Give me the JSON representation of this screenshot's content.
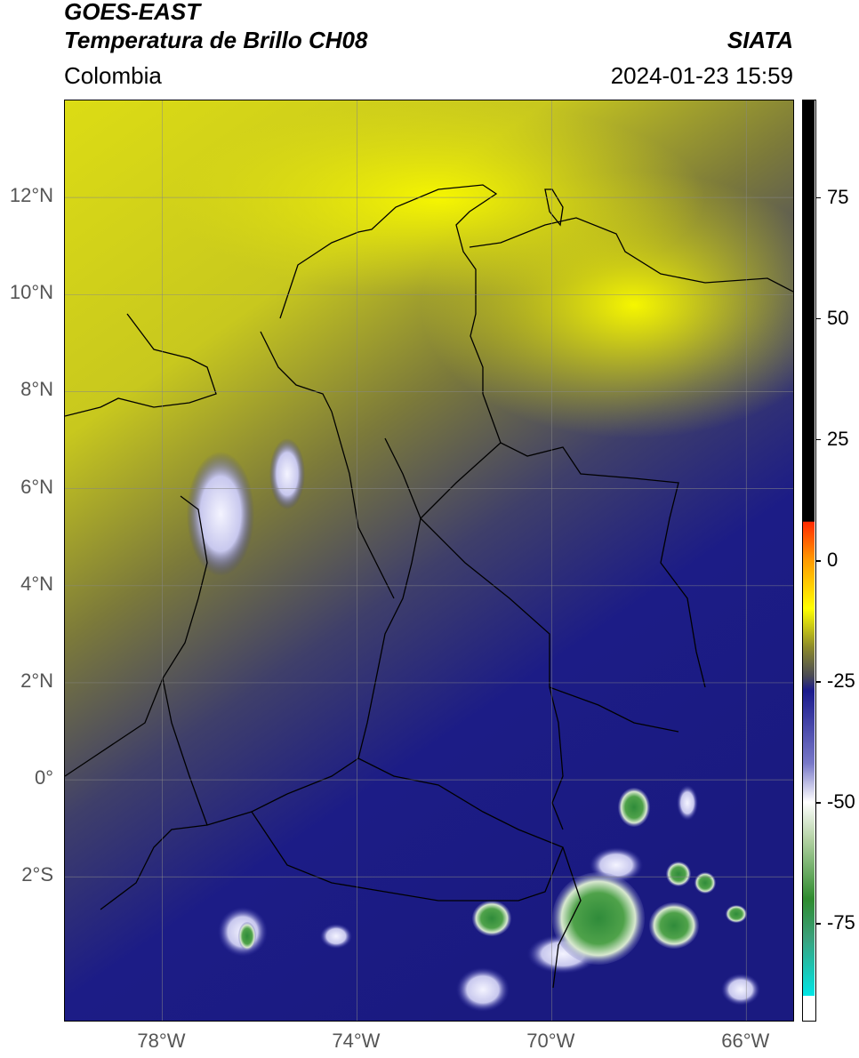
{
  "header": {
    "title_line1": "GOES-EAST",
    "title_line2": "Temperatura de Brillo CH08",
    "region": "Colombia",
    "organization": "SIATA",
    "timestamp": "2024-01-23 15:59"
  },
  "map": {
    "lon_range": [
      -80,
      -65
    ],
    "lat_range": [
      -5,
      14
    ],
    "lat_ticks": [
      {
        "value": 12,
        "label": "12°N"
      },
      {
        "value": 10,
        "label": "10°N"
      },
      {
        "value": 8,
        "label": "8°N"
      },
      {
        "value": 6,
        "label": "6°N"
      },
      {
        "value": 4,
        "label": "4°N"
      },
      {
        "value": 2,
        "label": "2°N"
      },
      {
        "value": 0,
        "label": "0°"
      },
      {
        "value": -2,
        "label": "2°S"
      }
    ],
    "lon_ticks": [
      {
        "value": -78,
        "label": "78°W"
      },
      {
        "value": -74,
        "label": "74°W"
      },
      {
        "value": -70,
        "label": "70°W"
      },
      {
        "value": -66,
        "label": "66°W"
      }
    ],
    "grid": true
  },
  "colorbar": {
    "range": [
      -95,
      95
    ],
    "ticks": [
      {
        "value": 75,
        "label": "75"
      },
      {
        "value": 50,
        "label": "50"
      },
      {
        "value": 25,
        "label": "25"
      },
      {
        "value": 0,
        "label": "0"
      },
      {
        "value": -25,
        "label": "-25"
      },
      {
        "value": -50,
        "label": "-50"
      },
      {
        "value": -75,
        "label": "-75"
      }
    ],
    "colors": {
      "black": "#000000",
      "red": "#ff2a00",
      "orange": "#ff9a00",
      "yellow": "#ffff00",
      "olive": "#8c8a2a",
      "gray": "#4a4a55",
      "navy": "#1a1a8c",
      "white": "#ffffff",
      "green": "#2e8b2e",
      "cyan": "#00e5e5"
    }
  }
}
